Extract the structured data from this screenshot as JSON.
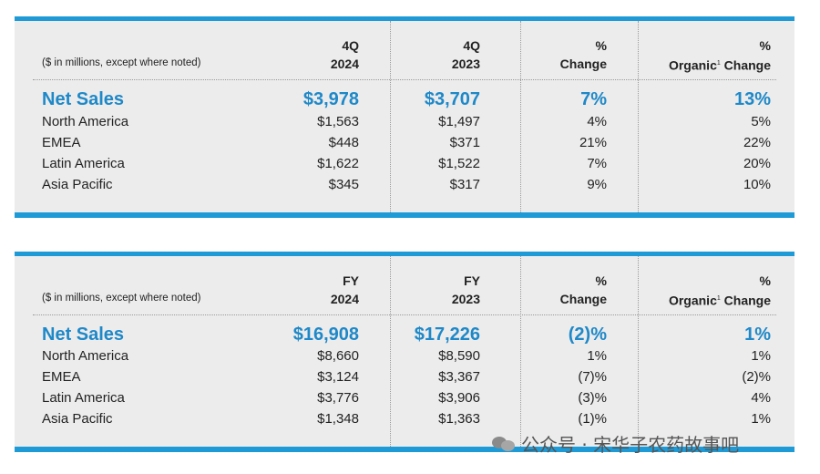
{
  "tables": [
    {
      "note": "($ in millions, except where noted)",
      "headers": [
        {
          "line1": "4Q",
          "line2": "2024"
        },
        {
          "line1": "4Q",
          "line2": "2023"
        },
        {
          "line1": "%",
          "line2": "Change"
        },
        {
          "line1": "%",
          "line2_pre": "Organic",
          "sup": "1",
          "line2_post": " Change"
        }
      ],
      "rows": [
        {
          "label": "Net Sales",
          "values": [
            "$3,978",
            "$3,707",
            "7%",
            "13%"
          ]
        },
        {
          "label": "North America",
          "values": [
            "$1,563",
            "$1,497",
            "4%",
            "5%"
          ]
        },
        {
          "label": "EMEA",
          "values": [
            "$448",
            "$371",
            "21%",
            "22%"
          ]
        },
        {
          "label": "Latin America",
          "values": [
            "$1,622",
            "$1,522",
            "7%",
            "20%"
          ]
        },
        {
          "label": "Asia Pacific",
          "values": [
            "$345",
            "$317",
            "9%",
            "10%"
          ]
        }
      ]
    },
    {
      "note": "($ in millions, except where noted)",
      "headers": [
        {
          "line1": "FY",
          "line2": "2024"
        },
        {
          "line1": "FY",
          "line2": "2023"
        },
        {
          "line1": "%",
          "line2": "Change"
        },
        {
          "line1": "%",
          "line2_pre": "Organic",
          "sup": "1",
          "line2_post": " Change"
        }
      ],
      "rows": [
        {
          "label": "Net Sales",
          "values": [
            "$16,908",
            "$17,226",
            "(2)%",
            "1%"
          ]
        },
        {
          "label": "North America",
          "values": [
            "$8,660",
            "$8,590",
            "1%",
            "1%"
          ]
        },
        {
          "label": "EMEA",
          "values": [
            "$3,124",
            "$3,367",
            "(7)%",
            "(2)%"
          ]
        },
        {
          "label": "Latin America",
          "values": [
            "$3,776",
            "$3,906",
            "(3)%",
            "4%"
          ]
        },
        {
          "label": "Asia Pacific",
          "values": [
            "$1,348",
            "$1,363",
            "(1)%",
            "1%"
          ]
        }
      ]
    }
  ],
  "watermark": {
    "text": "公众号 · 宋华子农药故事吧",
    "icon": "wechat-icon"
  },
  "colors": {
    "accent": "#1e9ad6",
    "total_text": "#1e88c8",
    "panel_bg": "#ececec"
  }
}
